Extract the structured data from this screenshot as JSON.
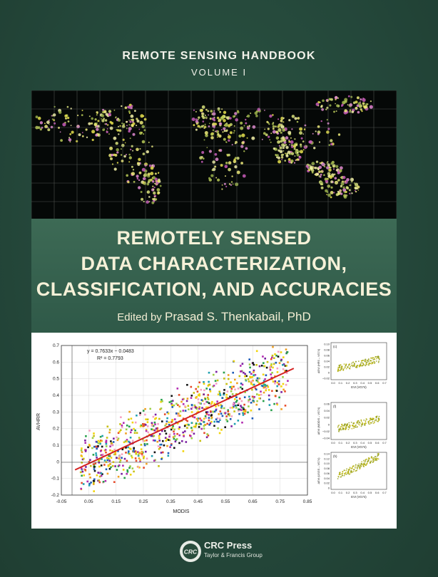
{
  "cover": {
    "series": "REMOTE SENSING HANDBOOK",
    "volume": "VOLUME I",
    "title_lines": [
      "REMOTELY SENSED",
      "DATA CHARACTERIZATION,",
      "CLASSIFICATION, AND ACCURACIES"
    ],
    "editor_prefix": "Edited by",
    "editor_name": "Prasad S. Thenkabail, PhD"
  },
  "publisher": {
    "logo_text": "CRC",
    "name": "CRC Press",
    "group": "Taylor & Francis Group"
  },
  "chart_data": [
    {
      "type": "scatter",
      "xlabel": "MODIS",
      "ylabel": "AVHRR",
      "xlim": [
        -0.05,
        0.85
      ],
      "ylim": [
        -0.2,
        0.7
      ],
      "xticks": [
        "-0.05",
        "0.05",
        "0.15",
        "0.25",
        "0.35",
        "0.45",
        "0.55",
        "0.65",
        "0.75",
        "0.85"
      ],
      "yticks": [
        "-0.2",
        "-0.1",
        "0",
        "0.1",
        "0.2",
        "0.3",
        "0.4",
        "0.5",
        "0.6",
        "0.7"
      ],
      "equation": "y = 0.7633x − 0.0483",
      "r2": "R² = 0.7793",
      "fit_line": {
        "x": [
          0.0,
          0.8
        ],
        "y": [
          -0.0483,
          0.5623
        ]
      },
      "grid": true
    },
    {
      "type": "scatter",
      "panel": "(c)",
      "ylabel": "ΔEVI (HRS – VG74)",
      "xlabel": "EVI (VG74)",
      "xticks": [
        "0.0",
        "0.1",
        "0.2",
        "0.3",
        "0.4",
        "0.5",
        "0.6",
        "0.7"
      ],
      "yticks": [
        "0.10",
        "0.08",
        "0.06",
        "0.04",
        "0.02",
        "0",
        "−0.02"
      ]
    },
    {
      "type": "scatter",
      "panel": "(f)",
      "ylabel": "ΔEVI (MODIS – VG74)",
      "xlabel": "EVI (VG74)",
      "xticks": [
        "0.0",
        "0.1",
        "0.2",
        "0.3",
        "0.4",
        "0.5",
        "0.6",
        "0.7"
      ],
      "yticks": [
        "0.06",
        "0.04",
        "0.02",
        "0",
        "−0.02",
        "−0.04"
      ]
    },
    {
      "type": "scatter",
      "panel": "(h)",
      "ylabel": "ΔEVI (USGS – VG74)",
      "xlabel": "EVI (VG74)",
      "xticks": [
        "0.0",
        "0.1",
        "0.2",
        "0.3",
        "0.4",
        "0.5",
        "0.6",
        "0.7"
      ],
      "yticks": [
        "0.14",
        "0.12",
        "0.10",
        "0.08",
        "0.06",
        "0.04",
        "0.02",
        "0"
      ]
    }
  ]
}
